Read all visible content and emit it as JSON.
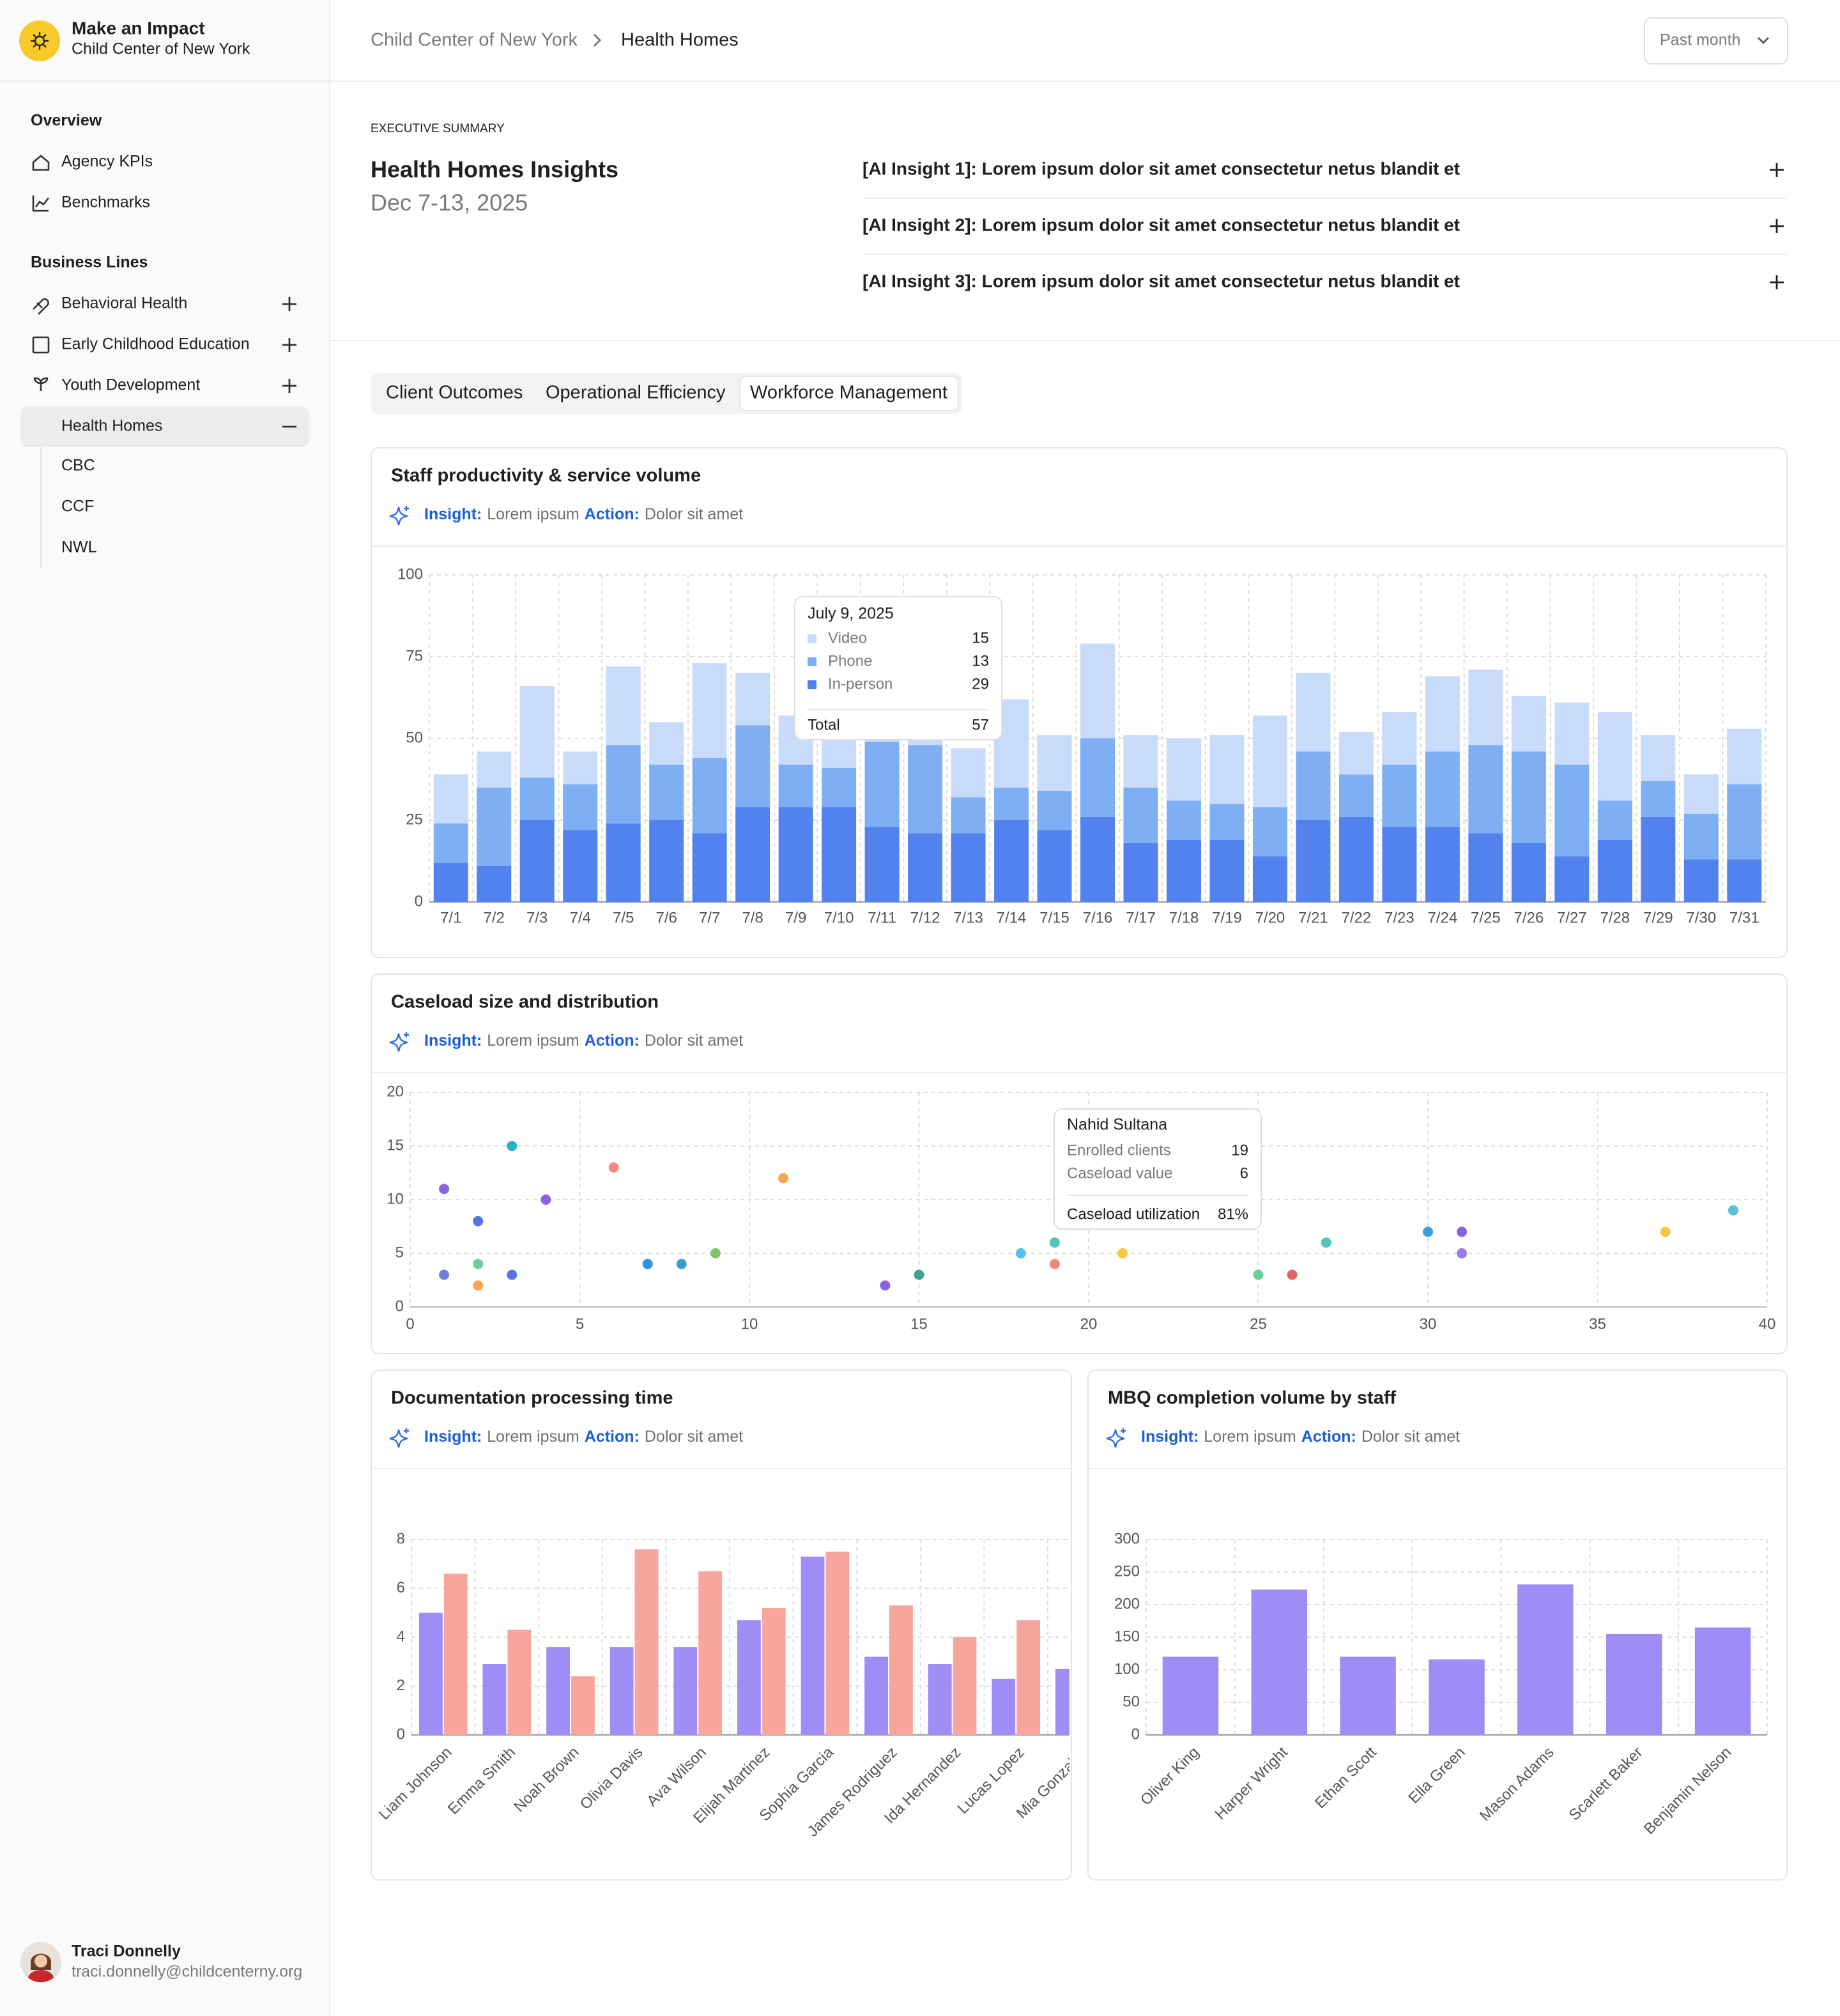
{
  "sidebar": {
    "brand_title": "Make an Impact",
    "brand_subtitle": "Child Center of New York",
    "sections": [
      {
        "title": "Overview",
        "items": [
          "Agency KPIs",
          "Benchmarks"
        ]
      },
      {
        "title": "Business Lines",
        "items": [
          "Behavioral Health",
          "Early Childhood Education",
          "Youth Development",
          "Health Homes"
        ],
        "subitems": [
          "CBC",
          "CCF",
          "NWL"
        ]
      }
    ],
    "user": {
      "name": "Traci Donnelly",
      "email": "traci.donnelly@childcenterny.org"
    }
  },
  "header": {
    "breadcrumb": [
      "Child Center of New York",
      "Health Homes"
    ],
    "range": "Past month"
  },
  "summary": {
    "eyebrow": "EXECUTIVE SUMMARY",
    "title": "Health Homes Insights",
    "dates": "Dec 7-13, 2025",
    "insights": [
      "[AI Insight 1]: Lorem ipsum dolor sit amet consectetur netus blandit et",
      "[AI Insight 2]: Lorem ipsum dolor sit amet consectetur netus blandit et",
      "[AI Insight 3]: Lorem ipsum dolor sit amet consectetur netus blandit et"
    ]
  },
  "tabs": [
    "Client Outcomes",
    "Operational Efficiency",
    "Workforce Management"
  ],
  "chart_data": [
    {
      "type": "bar",
      "stacked": true,
      "title": "Staff productivity & service volume",
      "insight": {
        "label": "Insight:",
        "text": "Lorem ipsum",
        "action_label": "Action:",
        "action": "Dolor sit amet"
      },
      "categories": [
        "7/1",
        "7/2",
        "7/3",
        "7/4",
        "7/5",
        "7/6",
        "7/7",
        "7/8",
        "7/9",
        "7/10",
        "7/11",
        "7/12",
        "7/13",
        "7/14",
        "7/15",
        "7/16",
        "7/17",
        "7/18",
        "7/19",
        "7/20",
        "7/21",
        "7/22",
        "7/23",
        "7/24",
        "7/25",
        "7/26",
        "7/27",
        "7/28",
        "7/29",
        "7/30",
        "7/31"
      ],
      "series": [
        {
          "name": "In-person",
          "color": "#5282ee",
          "values": [
            12,
            11,
            25,
            22,
            24,
            25,
            21,
            29,
            29,
            29,
            23,
            21,
            21,
            25,
            22,
            26,
            18,
            19,
            19,
            14,
            25,
            26,
            23,
            23,
            21,
            18,
            14,
            19,
            26,
            13,
            13
          ]
        },
        {
          "name": "Phone",
          "color": "#7eaff4",
          "values": [
            12,
            24,
            13,
            14,
            24,
            17,
            23,
            25,
            13,
            12,
            26,
            27,
            11,
            10,
            12,
            24,
            17,
            12,
            11,
            15,
            21,
            13,
            19,
            23,
            27,
            28,
            28,
            12,
            11,
            14,
            23
          ]
        },
        {
          "name": "Video",
          "color": "#c8dbfa",
          "values": [
            15,
            11,
            28,
            10,
            24,
            13,
            29,
            16,
            15,
            16,
            5,
            4,
            15,
            27,
            17,
            29,
            16,
            19,
            21,
            28,
            24,
            13,
            16,
            23,
            23,
            17,
            19,
            27,
            14,
            12,
            17
          ]
        }
      ],
      "ylim": [
        0,
        100
      ],
      "yticks": [
        0,
        25,
        50,
        75,
        100
      ],
      "grid": true,
      "tooltip": {
        "title": "July 9, 2025",
        "total_label": "Total",
        "total": 57
      }
    },
    {
      "type": "scatter",
      "title": "Caseload size and distribution",
      "insight": {
        "label": "Insight:",
        "text": "Lorem ipsum",
        "action_label": "Action:",
        "action": "Dolor sit amet"
      },
      "x": [
        1,
        1,
        2,
        2,
        2,
        3,
        3,
        4,
        6,
        7,
        8,
        9,
        11,
        14,
        15,
        18,
        19,
        19,
        21,
        25,
        26,
        27,
        30,
        31,
        31,
        37,
        39
      ],
      "values": [
        11,
        3,
        8,
        4,
        2,
        15,
        3,
        10,
        13,
        4,
        4,
        5,
        12,
        2,
        3,
        5,
        6,
        4,
        5,
        3,
        3,
        6,
        7,
        7,
        5,
        7,
        9
      ],
      "colors": [
        "#8a63e0",
        "#6b7fd9",
        "#5776dd",
        "#6fcf97",
        "#f6a650",
        "#26b3c9",
        "#5776dd",
        "#8a63e0",
        "#f7877f",
        "#2d93de",
        "#3b9ecb",
        "#7cc46c",
        "#f6a650",
        "#8a63e0",
        "#3aa58a",
        "#52c1e8",
        "#53c4b6",
        "#f7877f",
        "#f5c842",
        "#6fcf97",
        "#e06363",
        "#53c4b6",
        "#3ba0d8",
        "#8a63e0",
        "#9b7be6",
        "#f5c842",
        "#5bbfd6"
      ],
      "xlim": [
        0,
        40
      ],
      "xticks": [
        0,
        5,
        10,
        15,
        20,
        25,
        30,
        35,
        40
      ],
      "ylim": [
        0,
        20
      ],
      "yticks": [
        0,
        5,
        10,
        15,
        20
      ],
      "grid": true,
      "tooltip": {
        "name": "Nahid Sultana",
        "x_label": "Enrolled clients",
        "y_label": "Caseload value",
        "utilization_label": "Caseload utilization",
        "utilization": "81%"
      }
    },
    {
      "type": "bar",
      "stacked": false,
      "title": "Documentation processing time",
      "insight": {
        "label": "Insight:",
        "text": "Lorem ipsum",
        "action_label": "Action:",
        "action": "Dolor sit amet"
      },
      "categories": [
        "Liam Johnson",
        "Emma Smith",
        "Noah Brown",
        "Olivia Davis",
        "Ava Wilson",
        "Elijah Martinez",
        "Sophia Garcia",
        "James Rodriguez",
        "Ida Hernandez",
        "Lucas Lopez",
        "Mia Gonzalez"
      ],
      "series": [
        {
          "color": "#a08cf5",
          "values": [
            5.0,
            2.9,
            3.6,
            3.6,
            3.6,
            4.7,
            7.3,
            3.2,
            2.9,
            2.3,
            2.7
          ]
        },
        {
          "color": "#f9a49c",
          "values": [
            6.6,
            4.3,
            2.4,
            7.6,
            6.7,
            5.2,
            7.5,
            5.3,
            4.0,
            4.7,
            null
          ]
        }
      ],
      "ylim": [
        0,
        8
      ],
      "yticks": [
        0,
        2,
        4,
        6,
        8
      ],
      "grid": true
    },
    {
      "type": "bar",
      "stacked": false,
      "title": "MBQ completion volume by staff",
      "insight": {
        "label": "Insight:",
        "text": "Lorem ipsum",
        "action_label": "Action:",
        "action": "Dolor sit amet"
      },
      "categories": [
        "Oliver King",
        "Harper Wright",
        "Ethan Scott",
        "Ella Green",
        "Mason Adams",
        "Scarlett Baker",
        "Benjamin Nelson"
      ],
      "series": [
        {
          "color": "#a08cf5",
          "values": [
            120,
            223,
            120,
            116,
            231,
            155,
            165
          ]
        }
      ],
      "ylim": [
        0,
        300
      ],
      "yticks": [
        0,
        50,
        100,
        150,
        200,
        250,
        300
      ],
      "grid": true
    }
  ]
}
